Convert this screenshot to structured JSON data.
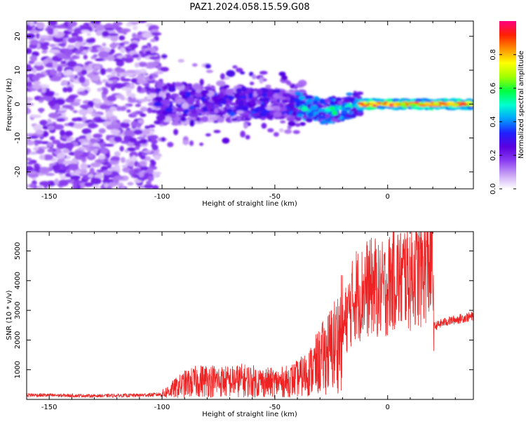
{
  "title": "PAZ1.2024.058.15.59.G08",
  "chart_data": [
    {
      "type": "heatmap",
      "xlabel": "Height of straight line (km)",
      "ylabel": "Frequency (Hz)",
      "xlim": [
        -160,
        38
      ],
      "ylim": [
        -25,
        24.5
      ],
      "xticks": [
        -150,
        -100,
        -50,
        0
      ],
      "yticks": [
        -20,
        -10,
        0,
        10,
        20
      ],
      "colorbar": {
        "label": "Normalized spectral amplitude",
        "range": [
          0,
          1
        ],
        "ticks": [
          0.0,
          0.2,
          0.4,
          0.6,
          0.8
        ],
        "colormap": [
          "#ffffff",
          "#c9a3f5",
          "#8a3df0",
          "#5a00e0",
          "#2020ff",
          "#00a0ff",
          "#00ffd0",
          "#00ff40",
          "#a0ff00",
          "#ffff00",
          "#ff9000",
          "#ff2000",
          "#ff0080"
        ]
      },
      "regions": [
        {
          "x_range": [
            -160,
            -100
          ],
          "freq_spread_hz": 25,
          "amplitude": "0.05-0.2"
        },
        {
          "x_range": [
            -100,
            -40
          ],
          "freq_spread_hz": 8,
          "amplitude": "0.1-0.35"
        },
        {
          "x_range": [
            -40,
            -15
          ],
          "freq_spread_hz": 4,
          "amplitude": "0.2-0.5"
        },
        {
          "x_range": [
            -15,
            38
          ],
          "freq_spread_hz": 1.5,
          "amplitude": "0.5-1.0"
        }
      ]
    },
    {
      "type": "line",
      "xlabel": "Height of straight line (km)",
      "ylabel": "SNR (10 * v/v)",
      "xlim": [
        -160,
        38
      ],
      "ylim": [
        0,
        5650
      ],
      "xticks": [
        -150,
        -100,
        -50,
        0
      ],
      "yticks": [
        1000,
        2000,
        3000,
        4000,
        5000
      ],
      "line_color": "#ee2222",
      "series": [
        {
          "x": [
            -160,
            -150,
            -140,
            -130,
            -120,
            -110,
            -100,
            -95,
            -90,
            -85,
            -80,
            -75,
            -70,
            -65,
            -60,
            -55,
            -50,
            -45,
            -40,
            -35,
            -30,
            -25,
            -22,
            -20,
            -18,
            -16,
            -14,
            -12,
            -10,
            -8,
            -6,
            -4,
            -2,
            0,
            2,
            4,
            6,
            8,
            10,
            12,
            14,
            16,
            18,
            20,
            20.5,
            22,
            25,
            28,
            31,
            34,
            38
          ],
          "y": [
            150,
            140,
            130,
            120,
            130,
            140,
            170,
            350,
            520,
            600,
            650,
            620,
            600,
            640,
            620,
            580,
            560,
            600,
            700,
            900,
            1300,
            1700,
            2000,
            2300,
            2800,
            3200,
            3600,
            3500,
            3800,
            3700,
            3900,
            3600,
            3700,
            3800,
            4100,
            4200,
            4000,
            4300,
            4100,
            4400,
            4200,
            4500,
            4600,
            4700,
            2450,
            2500,
            2600,
            2650,
            2700,
            2750,
            2800
          ]
        }
      ]
    }
  ]
}
